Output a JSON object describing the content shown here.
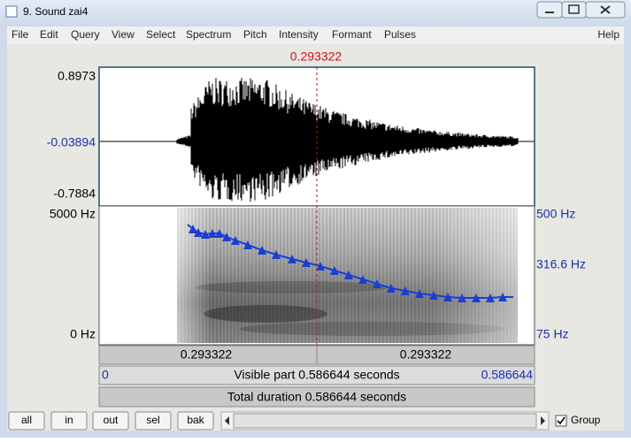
{
  "window": {
    "title": "9. Sound zai4"
  },
  "menu": {
    "items": [
      "File",
      "Edit",
      "Query",
      "View",
      "Select",
      "Spectrum",
      "Pitch",
      "Intensity",
      "Formant",
      "Pulses"
    ],
    "help": "Help"
  },
  "cursor_time": "0.293322",
  "waveform": {
    "max": "0.8973",
    "cursor_value": "-0.03894",
    "min": "-0.7884"
  },
  "spectrogram": {
    "freq_max": "5000 Hz",
    "freq_min": "0 Hz",
    "pitch_max": "500 Hz",
    "pitch_cursor": "316.6 Hz",
    "pitch_min": "75 Hz"
  },
  "selection": {
    "left": "0.293322",
    "right": "0.293322"
  },
  "visible": {
    "start": "0",
    "label": "Visible part 0.586644 seconds",
    "end": "0.586644"
  },
  "total": "Total duration 0.586644 seconds",
  "buttons": [
    "all",
    "in",
    "out",
    "sel",
    "bak"
  ],
  "group": "Group"
}
